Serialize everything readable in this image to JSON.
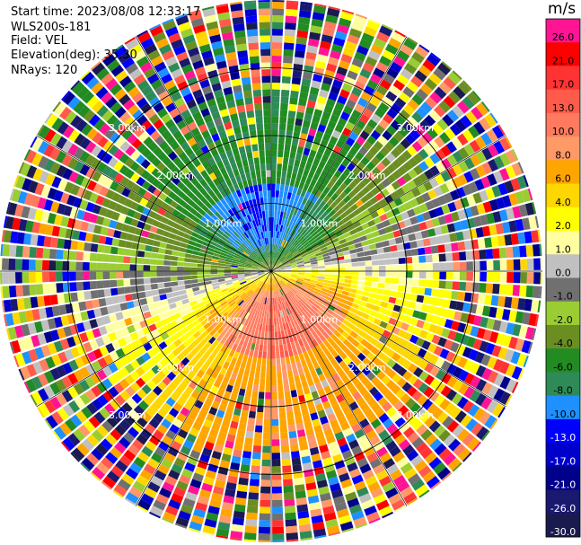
{
  "header": {
    "start_time": "Start time: 2023/08/08 12:33:17",
    "instrument": "WLS200s-181",
    "field": "Field: VEL",
    "elevation": "Elevation(deg): 35.30",
    "nrays": "NRays: 120"
  },
  "colorbar": {
    "unit": "m/s",
    "levels": [
      {
        "label": "26.0",
        "color": "#ff1493"
      },
      {
        "label": "21.0",
        "color": "#ff0000"
      },
      {
        "label": "17.0",
        "color": "#ff3333"
      },
      {
        "label": "13.0",
        "color": "#ff5a4a"
      },
      {
        "label": "10.0",
        "color": "#ff7a5e"
      },
      {
        "label": "8.0",
        "color": "#ff9966"
      },
      {
        "label": "6.0",
        "color": "#ffa500"
      },
      {
        "label": "4.0",
        "color": "#ffd700"
      },
      {
        "label": "2.0",
        "color": "#ffff00"
      },
      {
        "label": "1.0",
        "color": "#ffffa0"
      },
      {
        "label": "0.0",
        "color": "#c0c0c0"
      },
      {
        "label": "-1.0",
        "color": "#707070"
      },
      {
        "label": "-2.0",
        "color": "#9acd32"
      },
      {
        "label": "-4.0",
        "color": "#6b8e23"
      },
      {
        "label": "-6.0",
        "color": "#228b22"
      },
      {
        "label": "-8.0",
        "color": "#2e8b57"
      },
      {
        "label": "-10.0",
        "color": "#1e90ff"
      },
      {
        "label": "-13.0",
        "color": "#0000ff"
      },
      {
        "label": "-17.0",
        "color": "#0000cd"
      },
      {
        "label": "-21.0",
        "color": "#00008b"
      },
      {
        "label": "-26.0",
        "color": "#191970"
      },
      {
        "label": "-30.0",
        "color": "#1a1a4e"
      }
    ]
  },
  "chart_data": {
    "type": "heatmap",
    "projection": "polar-ppi",
    "field": "VEL",
    "nrays": 120,
    "range_unit": "km",
    "range_rings": [
      1.0,
      2.0,
      3.0
    ],
    "ring_labels": [
      "1.00km",
      "2.00km",
      "3.00km"
    ],
    "max_range_km": 4.0,
    "coherent_region_km": 2.7,
    "vmin": -30.0,
    "vmax": 26.0,
    "pattern": "dipole",
    "outbound_direction_deg": 170,
    "outbound_peak": 13.0,
    "inbound_peak": -10.0,
    "outer_region": "noise"
  }
}
